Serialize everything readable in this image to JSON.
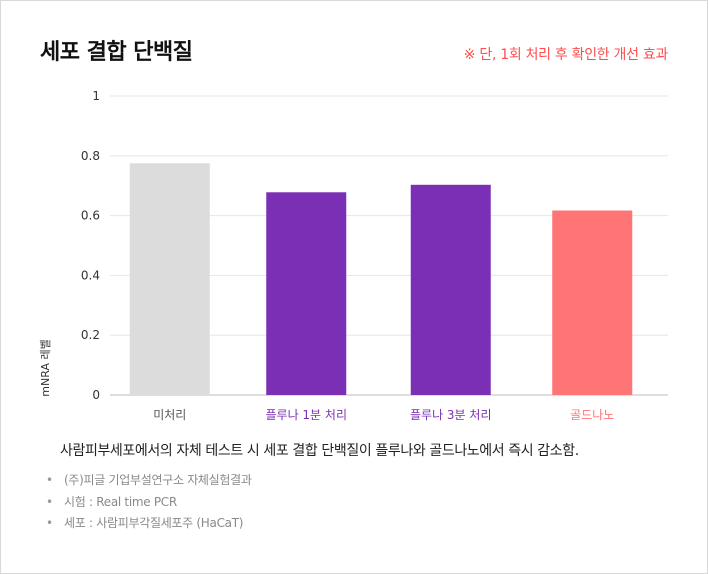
{
  "title": "세포 결합 단백질",
  "note": "※ 단, 1회 처리 후 확인한 개선 효과",
  "summary": "사람피부세포에서의 자체 테스트 시 세포 결합 단백질이 플루나와 골드나노에서 즉시 감소함.",
  "footnotes": [
    "(주)피글 기업부설연구소 자체실험결과",
    "시험 : Real time PCR",
    "세포 : 사람피부각질세포주 (HaCaT)"
  ],
  "chart_data": {
    "type": "bar",
    "categories": [
      "미처리",
      "플루나 1분 처리",
      "플루나 3분 처리",
      "골드나노"
    ],
    "values": [
      0.775,
      0.678,
      0.703,
      0.617
    ],
    "bar_colors": [
      "#dcdcdc",
      "#7b2fb5",
      "#7b2fb5",
      "#ff7474"
    ],
    "label_colors": [
      "#555555",
      "#7b2fb5",
      "#7b2fb5",
      "#ff7474"
    ],
    "ylabel": "mNRA 레벨",
    "ylim": [
      0,
      1
    ],
    "yticks": [
      "0",
      "0.2",
      "0.4",
      "0.6",
      "0.8",
      "1"
    ],
    "grid": true
  }
}
